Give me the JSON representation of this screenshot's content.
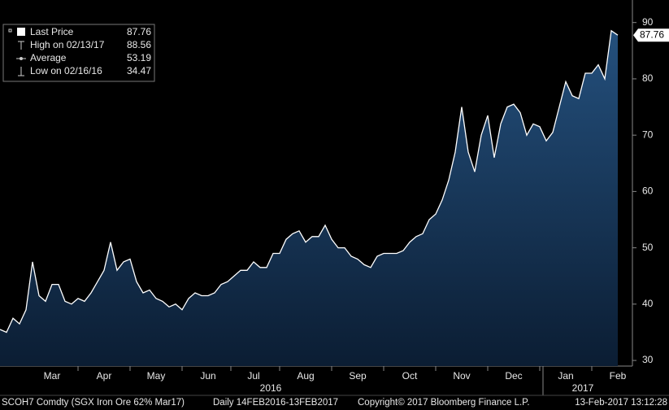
{
  "chart_data": {
    "type": "area",
    "series": [
      {
        "name": "Last Price",
        "color": "#ffffff",
        "values": [
          35.5,
          35,
          37.5,
          36.5,
          39,
          47.5,
          41.5,
          40.5,
          43.5,
          43.5,
          40.5,
          40,
          41,
          40.5,
          42,
          44,
          46,
          51,
          46,
          47.5,
          48,
          44,
          42,
          42.5,
          41,
          40.5,
          39.5,
          40,
          39,
          41,
          42,
          41.5,
          41.5,
          42,
          43.5,
          44,
          45,
          46,
          46,
          47.5,
          46.5,
          46.5,
          49,
          49,
          51.5,
          52.5,
          53,
          51,
          52,
          52,
          54,
          51.5,
          50,
          50,
          48.5,
          48,
          47,
          46.5,
          48.5,
          49,
          49,
          49,
          49.5,
          51,
          52,
          52.5,
          55,
          56,
          58.5,
          62,
          67,
          75,
          67,
          63.5,
          70,
          73.5,
          66,
          72,
          75,
          75.5,
          74,
          70,
          72,
          71.5,
          69,
          70.5,
          75,
          79.5,
          77,
          76.5,
          81,
          81,
          82.5,
          80,
          88.56,
          87.76
        ]
      }
    ],
    "categories": [
      null,
      null,
      null,
      null,
      null,
      null,
      null,
      null,
      "Mar",
      null,
      null,
      null,
      null,
      null,
      null,
      null,
      "Apr",
      null,
      null,
      null,
      null,
      null,
      null,
      null,
      "May",
      null,
      null,
      null,
      null,
      null,
      null,
      null,
      "Jun",
      null,
      null,
      null,
      null,
      null,
      null,
      "Jul",
      null,
      null,
      null,
      null,
      null,
      null,
      null,
      "Aug",
      null,
      null,
      null,
      null,
      null,
      null,
      null,
      "Sep",
      null,
      null,
      null,
      null,
      null,
      null,
      null,
      "Oct",
      null,
      null,
      null,
      null,
      null,
      null,
      null,
      "Nov",
      null,
      null,
      null,
      null,
      null,
      null,
      null,
      "Dec",
      null,
      null,
      null,
      null,
      null,
      null,
      null,
      "Jan",
      null,
      null,
      null,
      null,
      null,
      null,
      null,
      "Feb"
    ],
    "years": [
      "2016",
      "2017"
    ],
    "ylim": [
      29,
      94
    ],
    "yticks": [
      30,
      40,
      50,
      60,
      70,
      80,
      90
    ],
    "stats": [
      {
        "label": "High on 02/13/17",
        "value": 88.56
      },
      {
        "label": "Average",
        "value": 53.19
      },
      {
        "label": "Low on 02/16/16",
        "value": 34.47
      }
    ],
    "footer": [
      "SCOH7 Comdty (SGX Iron Ore 62%  Mar17)",
      "Daily 14FEB2016-13FEB2017",
      "Copyright© 2017 Bloomberg Finance L.P.",
      "13-Feb-2017 13:12:28"
    ]
  }
}
